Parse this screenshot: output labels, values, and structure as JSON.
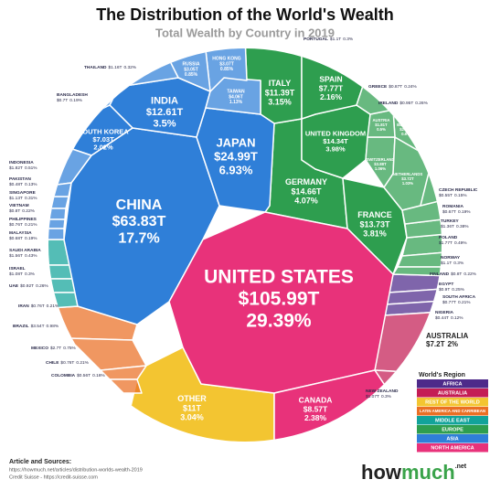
{
  "chart_data": {
    "type": "voronoi-treemap",
    "title": "The Distribution of the World's Wealth",
    "subtitle": "Total Wealth by Country in 2019",
    "legend_title": "World's Region",
    "series": [
      {
        "name": "AFRICA",
        "color": "#4e2a8a",
        "categories": [
          "EGYPT",
          "SOUTH AFRICA",
          "NIGERIA"
        ],
        "values": [
          0.9,
          0.77,
          0.44
        ],
        "value_labels": [
          "$0.9T",
          "$0.77T",
          "$0.44T"
        ],
        "shares": [
          0.25,
          0.21,
          0.12
        ],
        "share_labels": [
          "0.25%",
          "0.21%",
          "0.12%"
        ]
      },
      {
        "name": "AUSTRALIA",
        "color": "#c41d55",
        "categories": [
          "AUSTRALIA",
          "NEW ZEALAND"
        ],
        "values": [
          7.2,
          1.07
        ],
        "value_labels": [
          "$7.2T",
          "$1.07T"
        ],
        "shares": [
          2,
          0.3
        ],
        "share_labels": [
          "2%",
          "0.3%"
        ]
      },
      {
        "name": "REST OF THE WORLD",
        "color": "#f3c531",
        "categories": [
          "OTHER"
        ],
        "values": [
          11
        ],
        "value_labels": [
          "$11T"
        ],
        "shares": [
          3.04
        ],
        "share_labels": [
          "3.04%"
        ]
      },
      {
        "name": "LATIN AMERICA AND CARRIBEAN",
        "color": "#ea6f24",
        "categories": [
          "BRAZIL",
          "MEXICO",
          "CHILE",
          "COLOMBIA"
        ],
        "values": [
          3.54,
          2.7,
          0.76,
          0.56
        ],
        "value_labels": [
          "$3.54T",
          "$2.7T",
          "$0.76T",
          "$0.56T"
        ],
        "shares": [
          0.98,
          0.75,
          0.21,
          0.16
        ],
        "share_labels": [
          "0.98%",
          "0.75%",
          "0.21%",
          "0.16%"
        ]
      },
      {
        "name": "MIDDLE EAST",
        "color": "#12a39a",
        "categories": [
          "SAUDI ARABIA",
          "ISRAEL",
          "UAE",
          "IRAN"
        ],
        "values": [
          1.56,
          1.08,
          0.92,
          0.76
        ],
        "value_labels": [
          "$1.56T",
          "$1.08T",
          "$0.92T",
          "$0.76T"
        ],
        "shares": [
          0.43,
          0.3,
          0.26,
          0.21
        ],
        "share_labels": [
          "0.43%",
          "0.3%",
          "0.26%",
          "0.21%"
        ]
      },
      {
        "name": "EUROPE",
        "color": "#2e9e4f",
        "categories": [
          "GERMANY",
          "UNITED KINGDOM",
          "FRANCE",
          "ITALY",
          "SPAIN",
          "SWITZERLAND",
          "NETHERLANDS",
          "BELGIUM",
          "AUSTRIA",
          "POLAND",
          "TURKEY",
          "NORWAY",
          "PORTUGAL",
          "FINLAND",
          "IRELAND",
          "GREECE",
          "ROMANIA",
          "CZECH REPUBLIC"
        ],
        "values": [
          14.66,
          14.34,
          13.73,
          11.39,
          7.77,
          3.88,
          3.72,
          2.18,
          1.81,
          1.77,
          1.36,
          1.1,
          1.1,
          0.8,
          0.95,
          0.87,
          0.67,
          0.55
        ],
        "value_labels": [
          "$14.66T",
          "$14.34T",
          "$13.73T",
          "$11.39T",
          "$7.77T",
          "$3.88T",
          "$3.72T",
          "$2.18T",
          "$1.81T",
          "$1.77T",
          "$1.36T",
          "$1.1T",
          "$1.1T",
          "$0.8T",
          "$0.95T",
          "$0.87T",
          "$0.67T",
          "$0.55T"
        ],
        "shares": [
          4.07,
          3.98,
          3.81,
          3.15,
          2.16,
          1.06,
          1.03,
          0.6,
          0.5,
          0.49,
          0.38,
          0.3,
          0.3,
          0.22,
          0.26,
          0.24,
          0.19,
          0.15
        ],
        "share_labels": [
          "4.07%",
          "3.98%",
          "3.81%",
          "3.15%",
          "2.16%",
          "1.06%",
          "1.03%",
          "0.6%",
          "0.5%",
          "0.49%",
          "0.38%",
          "0.3%",
          "0.3%",
          "0.22%",
          "0.26%",
          "0.24%",
          "0.19%",
          "0.15%"
        ]
      },
      {
        "name": "ASIA",
        "color": "#2f7fd8",
        "categories": [
          "CHINA",
          "JAPAN",
          "INDIA",
          "SOUTH KOREA",
          "TAIWAN",
          "HONG KONG",
          "RUSSIA",
          "INDONESIA",
          "THAILAND",
          "SINGAPORE",
          "VIETNAM",
          "PHILIPPINES",
          "BANGLADESH",
          "MALAYSIA",
          "PAKISTAN"
        ],
        "values": [
          63.83,
          24.99,
          12.61,
          7.03,
          4.06,
          3.07,
          3.05,
          1.82,
          1.16,
          1.13,
          0.8,
          0.76,
          0.7,
          0.68,
          0.48
        ],
        "value_labels": [
          "$63.83T",
          "$24.99T",
          "$12.61T",
          "$7.03T",
          "$4.06T",
          "$3.07T",
          "$3.05T",
          "$1.82T",
          "$1.16T",
          "$1.13T",
          "$0.8T",
          "$0.76T",
          "$0.7T",
          "$0.68T",
          "$0.48T"
        ],
        "shares": [
          17.7,
          6.93,
          3.5,
          2.02,
          1.13,
          0.85,
          0.85,
          0.51,
          0.32,
          0.31,
          0.22,
          0.21,
          0.19,
          0.19,
          0.13
        ],
        "share_labels": [
          "17.7%",
          "6.93%",
          "3.5%",
          "2.02%",
          "1.13%",
          "0.85%",
          "0.85%",
          "0.51%",
          "0.32%",
          "0.31%",
          "0.22%",
          "0.21%",
          "0.19%",
          "0.19%",
          "0.13%"
        ]
      },
      {
        "name": "NORTH AMERICA",
        "color": "#e8327a",
        "categories": [
          "UNITED STATES",
          "CANADA"
        ],
        "values": [
          105.99,
          8.57
        ],
        "value_labels": [
          "$105.99T",
          "$8.57T"
        ],
        "shares": [
          29.39,
          2.38
        ],
        "share_labels": [
          "29.39%",
          "2.38%"
        ]
      }
    ]
  },
  "footer": {
    "heading": "Article and Sources:",
    "lines": [
      "https://howmuch.net/articles/distribution-worlds-wealth-2019",
      "Credit Suisse - https://credit-suisse.com"
    ]
  },
  "logo": {
    "main": "how",
    "accent": "much",
    "suffix": ".net"
  }
}
